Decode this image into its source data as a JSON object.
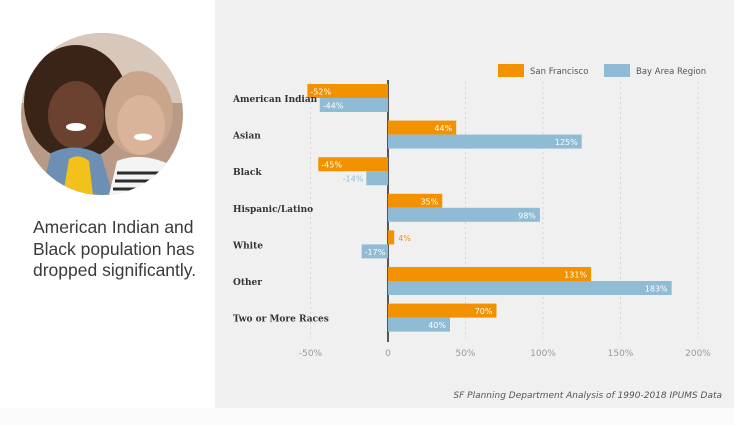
{
  "headline": "American Indian and Black population has dropped significantly.",
  "source": "SF Planning Department Analysis of 1990-2018 IPUMS Data",
  "colors": {
    "sf": "#f39200",
    "bay": "#8fbcd4",
    "panel": "#f0f0f0"
  },
  "chart_data": {
    "type": "bar",
    "orientation": "horizontal",
    "categories": [
      "American Indian",
      "Asian",
      "Black",
      "Hispanic/Latino",
      "White",
      "Other",
      "Two or More Races"
    ],
    "series": [
      {
        "name": "San Francisco",
        "values": [
          -52,
          44,
          -45,
          35,
          4,
          131,
          70
        ],
        "labels": [
          "-52%",
          "44%",
          "-45%",
          "35%",
          "4%",
          "131%",
          "70%"
        ]
      },
      {
        "name": "Bay Area Region",
        "values": [
          -44,
          125,
          -14,
          98,
          -17,
          183,
          40
        ],
        "labels": [
          "-44%",
          "125%",
          "-14%",
          "98%",
          "-17%",
          "183%",
          "40%"
        ]
      }
    ],
    "ticks": [
      -50,
      0,
      50,
      100,
      150,
      200
    ],
    "tick_labels": [
      "-50%",
      "0",
      "50%",
      "100%",
      "150%",
      "200%"
    ],
    "xlim": [
      -50,
      200
    ],
    "grid": true,
    "legend": "top-right"
  }
}
